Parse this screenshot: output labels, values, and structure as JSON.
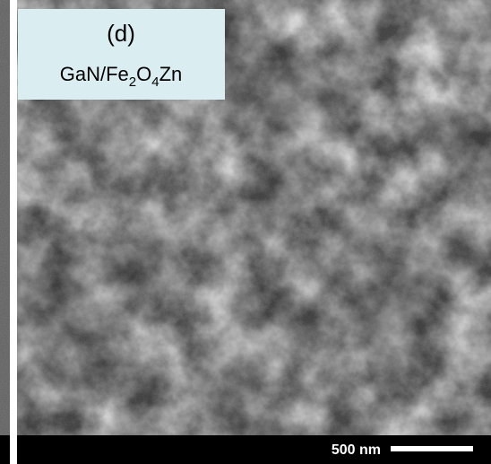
{
  "panel": {
    "label": "(d)",
    "sample_parts": [
      "GaN/Fe",
      "2",
      "O",
      "4",
      "Zn"
    ]
  },
  "scale_bar": {
    "label": "500 nm"
  }
}
